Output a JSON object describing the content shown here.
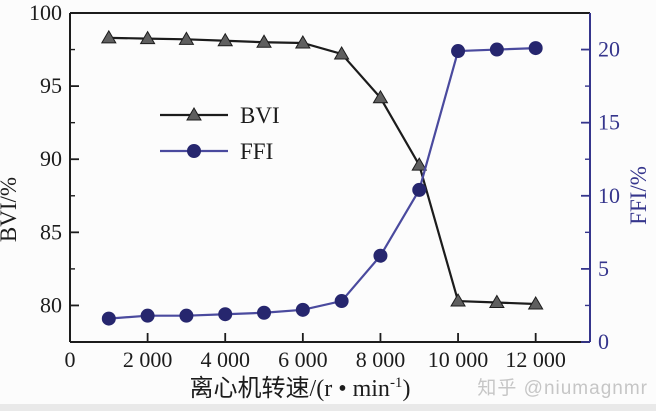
{
  "figure": {
    "background": "#fcfcfc",
    "bottom_strip_color": "#e9e9e9"
  },
  "watermark": {
    "text": "知乎 @niumagnmr",
    "color": "#c6c6c6"
  },
  "chart_data": {
    "type": "line",
    "title": "",
    "xlabel": "离心机转速/(r • min⁻¹)",
    "xlabel_parts": {
      "pre": "离心机转速/(r • min",
      "sup": "-1",
      "post": ")"
    },
    "x": [
      1000,
      2000,
      3000,
      4000,
      5000,
      6000,
      7000,
      8000,
      9000,
      10000,
      11000,
      12000
    ],
    "series": [
      {
        "name": "BVI",
        "axis": "left",
        "line_color": "#1c1c1c",
        "marker": "triangle",
        "marker_fill": "#5f5f5f",
        "marker_edge": "#1c1c1c",
        "values": [
          98.3,
          98.25,
          98.2,
          98.1,
          98.0,
          97.95,
          97.2,
          94.2,
          89.6,
          80.3,
          80.2,
          80.1
        ]
      },
      {
        "name": "FFI",
        "axis": "right",
        "line_color": "#4a4a9e",
        "marker": "circle",
        "marker_fill": "#26266e",
        "marker_edge": "#26266e",
        "values": [
          1.6,
          1.8,
          1.8,
          1.9,
          2.0,
          2.2,
          2.8,
          5.9,
          10.4,
          19.9,
          20.0,
          20.1
        ]
      }
    ],
    "left_axis": {
      "label": "BVI/%",
      "min": 77.5,
      "max": 100,
      "ticks": [
        100,
        95,
        90,
        85,
        80
      ],
      "minor_ticks": [
        97.5,
        92.5,
        87.5,
        82.5
      ],
      "color": "#1c1c1c"
    },
    "right_axis": {
      "label": "FFI/%",
      "min": 0,
      "max": 22.5,
      "ticks": [
        20,
        15,
        10,
        5,
        0
      ],
      "minor_ticks": [
        17.5,
        12.5,
        7.5,
        2.5
      ],
      "color": "#35358c"
    },
    "x_axis": {
      "min": 0,
      "max": 13400,
      "ticks": [
        0,
        2000,
        4000,
        6000,
        8000,
        10000,
        12000
      ],
      "tick_labels": [
        "0",
        "2 000",
        "4 000",
        "6 000",
        "8 000",
        "10 000",
        "12 000"
      ],
      "color": "#1c1c1c"
    },
    "legend": {
      "entries": [
        "BVI",
        "FFI"
      ],
      "position": "center-left"
    },
    "grid": false
  }
}
